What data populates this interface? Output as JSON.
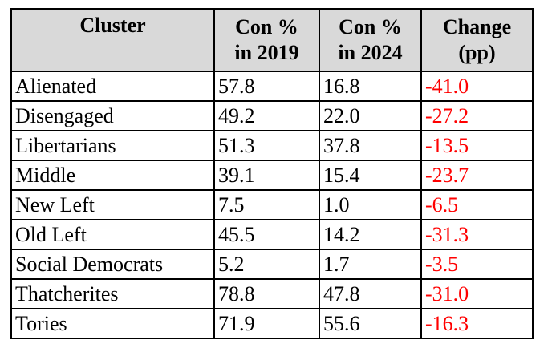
{
  "table": {
    "headers": [
      {
        "line1": "Cluster",
        "line2": ""
      },
      {
        "line1": "Con %",
        "line2": "in 2019"
      },
      {
        "line1": "Con %",
        "line2": "in 2024"
      },
      {
        "line1": "Change",
        "line2": "(pp)"
      }
    ],
    "rows": [
      {
        "cluster": "Alienated",
        "con2019": "57.8",
        "con2024": "16.8",
        "change": "-41.0"
      },
      {
        "cluster": "Disengaged",
        "con2019": "49.2",
        "con2024": "22.0",
        "change": "-27.2"
      },
      {
        "cluster": "Libertarians",
        "con2019": "51.3",
        "con2024": "37.8",
        "change": "-13.5"
      },
      {
        "cluster": "Middle",
        "con2019": "39.1",
        "con2024": "15.4",
        "change": "-23.7"
      },
      {
        "cluster": "New Left",
        "con2019": "7.5",
        "con2024": "1.0",
        "change": "-6.5"
      },
      {
        "cluster": "Old Left",
        "con2019": "45.5",
        "con2024": "14.2",
        "change": "-31.3"
      },
      {
        "cluster": "Social Democrats",
        "con2019": "5.2",
        "con2024": "1.7",
        "change": "-3.5"
      },
      {
        "cluster": "Thatcherites",
        "con2019": "78.8",
        "con2024": "47.8",
        "change": "-31.0"
      },
      {
        "cluster": "Tories",
        "con2019": "71.9",
        "con2024": "55.6",
        "change": "-16.3"
      }
    ],
    "colors": {
      "header_background": "#d9d9d9",
      "negative_change": "#ff0000",
      "border": "#000000"
    }
  }
}
